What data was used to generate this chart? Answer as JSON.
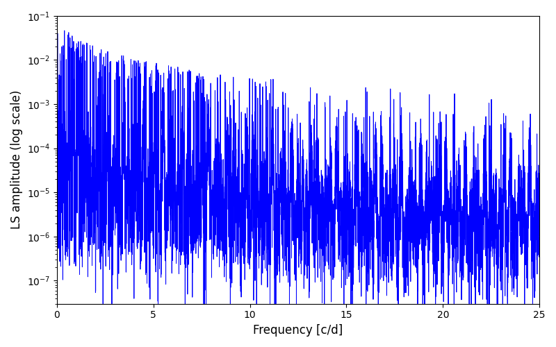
{
  "xlabel": "Frequency [c/d]",
  "ylabel": "LS amplitude (log scale)",
  "xlim": [
    0,
    25
  ],
  "ylim": [
    3e-08,
    0.1
  ],
  "line_color": "blue",
  "line_width": 0.7,
  "background_color": "#ffffff",
  "yscale": "log",
  "seed": 12345,
  "n_points": 8000,
  "freq_max": 25.0,
  "xlabel_fontsize": 12,
  "ylabel_fontsize": 12
}
